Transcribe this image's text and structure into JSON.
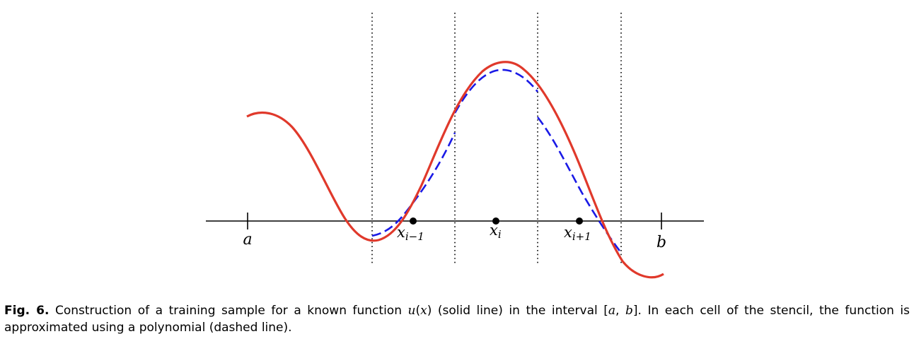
{
  "figure": {
    "labels": {
      "a": "a",
      "b": "b",
      "x_prev": {
        "base": "x",
        "sub": "i−1"
      },
      "x_mid": {
        "base": "x",
        "sub": "i"
      },
      "x_next": {
        "base": "x",
        "sub": "i+1"
      }
    },
    "colors": {
      "function": "#e0392b",
      "polynomial": "#1a1ae6",
      "axis": "#000000",
      "cell_boundary": "#000000"
    }
  },
  "caption": {
    "label": "Fig. 6.",
    "t1": " Construction of a training sample for a known function ",
    "u": "u",
    "t2": "(",
    "x": "x",
    "t3": ") (solid line) in the interval [",
    "a": "a",
    "t4": ", ",
    "b": "b",
    "t5": "]. In each cell of the stencil, the function is approximated using a polynomial (dashed line)."
  }
}
